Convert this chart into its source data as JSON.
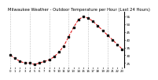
{
  "title": "Milwaukee Weather - Outdoor Temperature per Hour (Last 24 Hours)",
  "hours": [
    0,
    1,
    2,
    3,
    4,
    5,
    6,
    7,
    8,
    9,
    10,
    11,
    12,
    13,
    14,
    15,
    16,
    17,
    18,
    19,
    20,
    21,
    22,
    23
  ],
  "temps": [
    30,
    28,
    26,
    25,
    25,
    24,
    25,
    26,
    27,
    29,
    32,
    36,
    42,
    48,
    53,
    55,
    54,
    52,
    49,
    46,
    43,
    40,
    37,
    34
  ],
  "line_color": "#dd0000",
  "dot_color": "#111111",
  "bg_color": "#ffffff",
  "grid_color": "#888888",
  "ylim": [
    22,
    58
  ],
  "yticks": [
    25,
    30,
    35,
    40,
    45,
    50,
    55
  ],
  "ytick_labels": [
    "25",
    "30",
    "35",
    "40",
    "45",
    "50",
    "55"
  ],
  "grid_hours": [
    0,
    4,
    8,
    12,
    16,
    20,
    24
  ],
  "title_fontsize": 3.8,
  "tick_fontsize": 3.0,
  "xlabel_fontsize": 2.8
}
